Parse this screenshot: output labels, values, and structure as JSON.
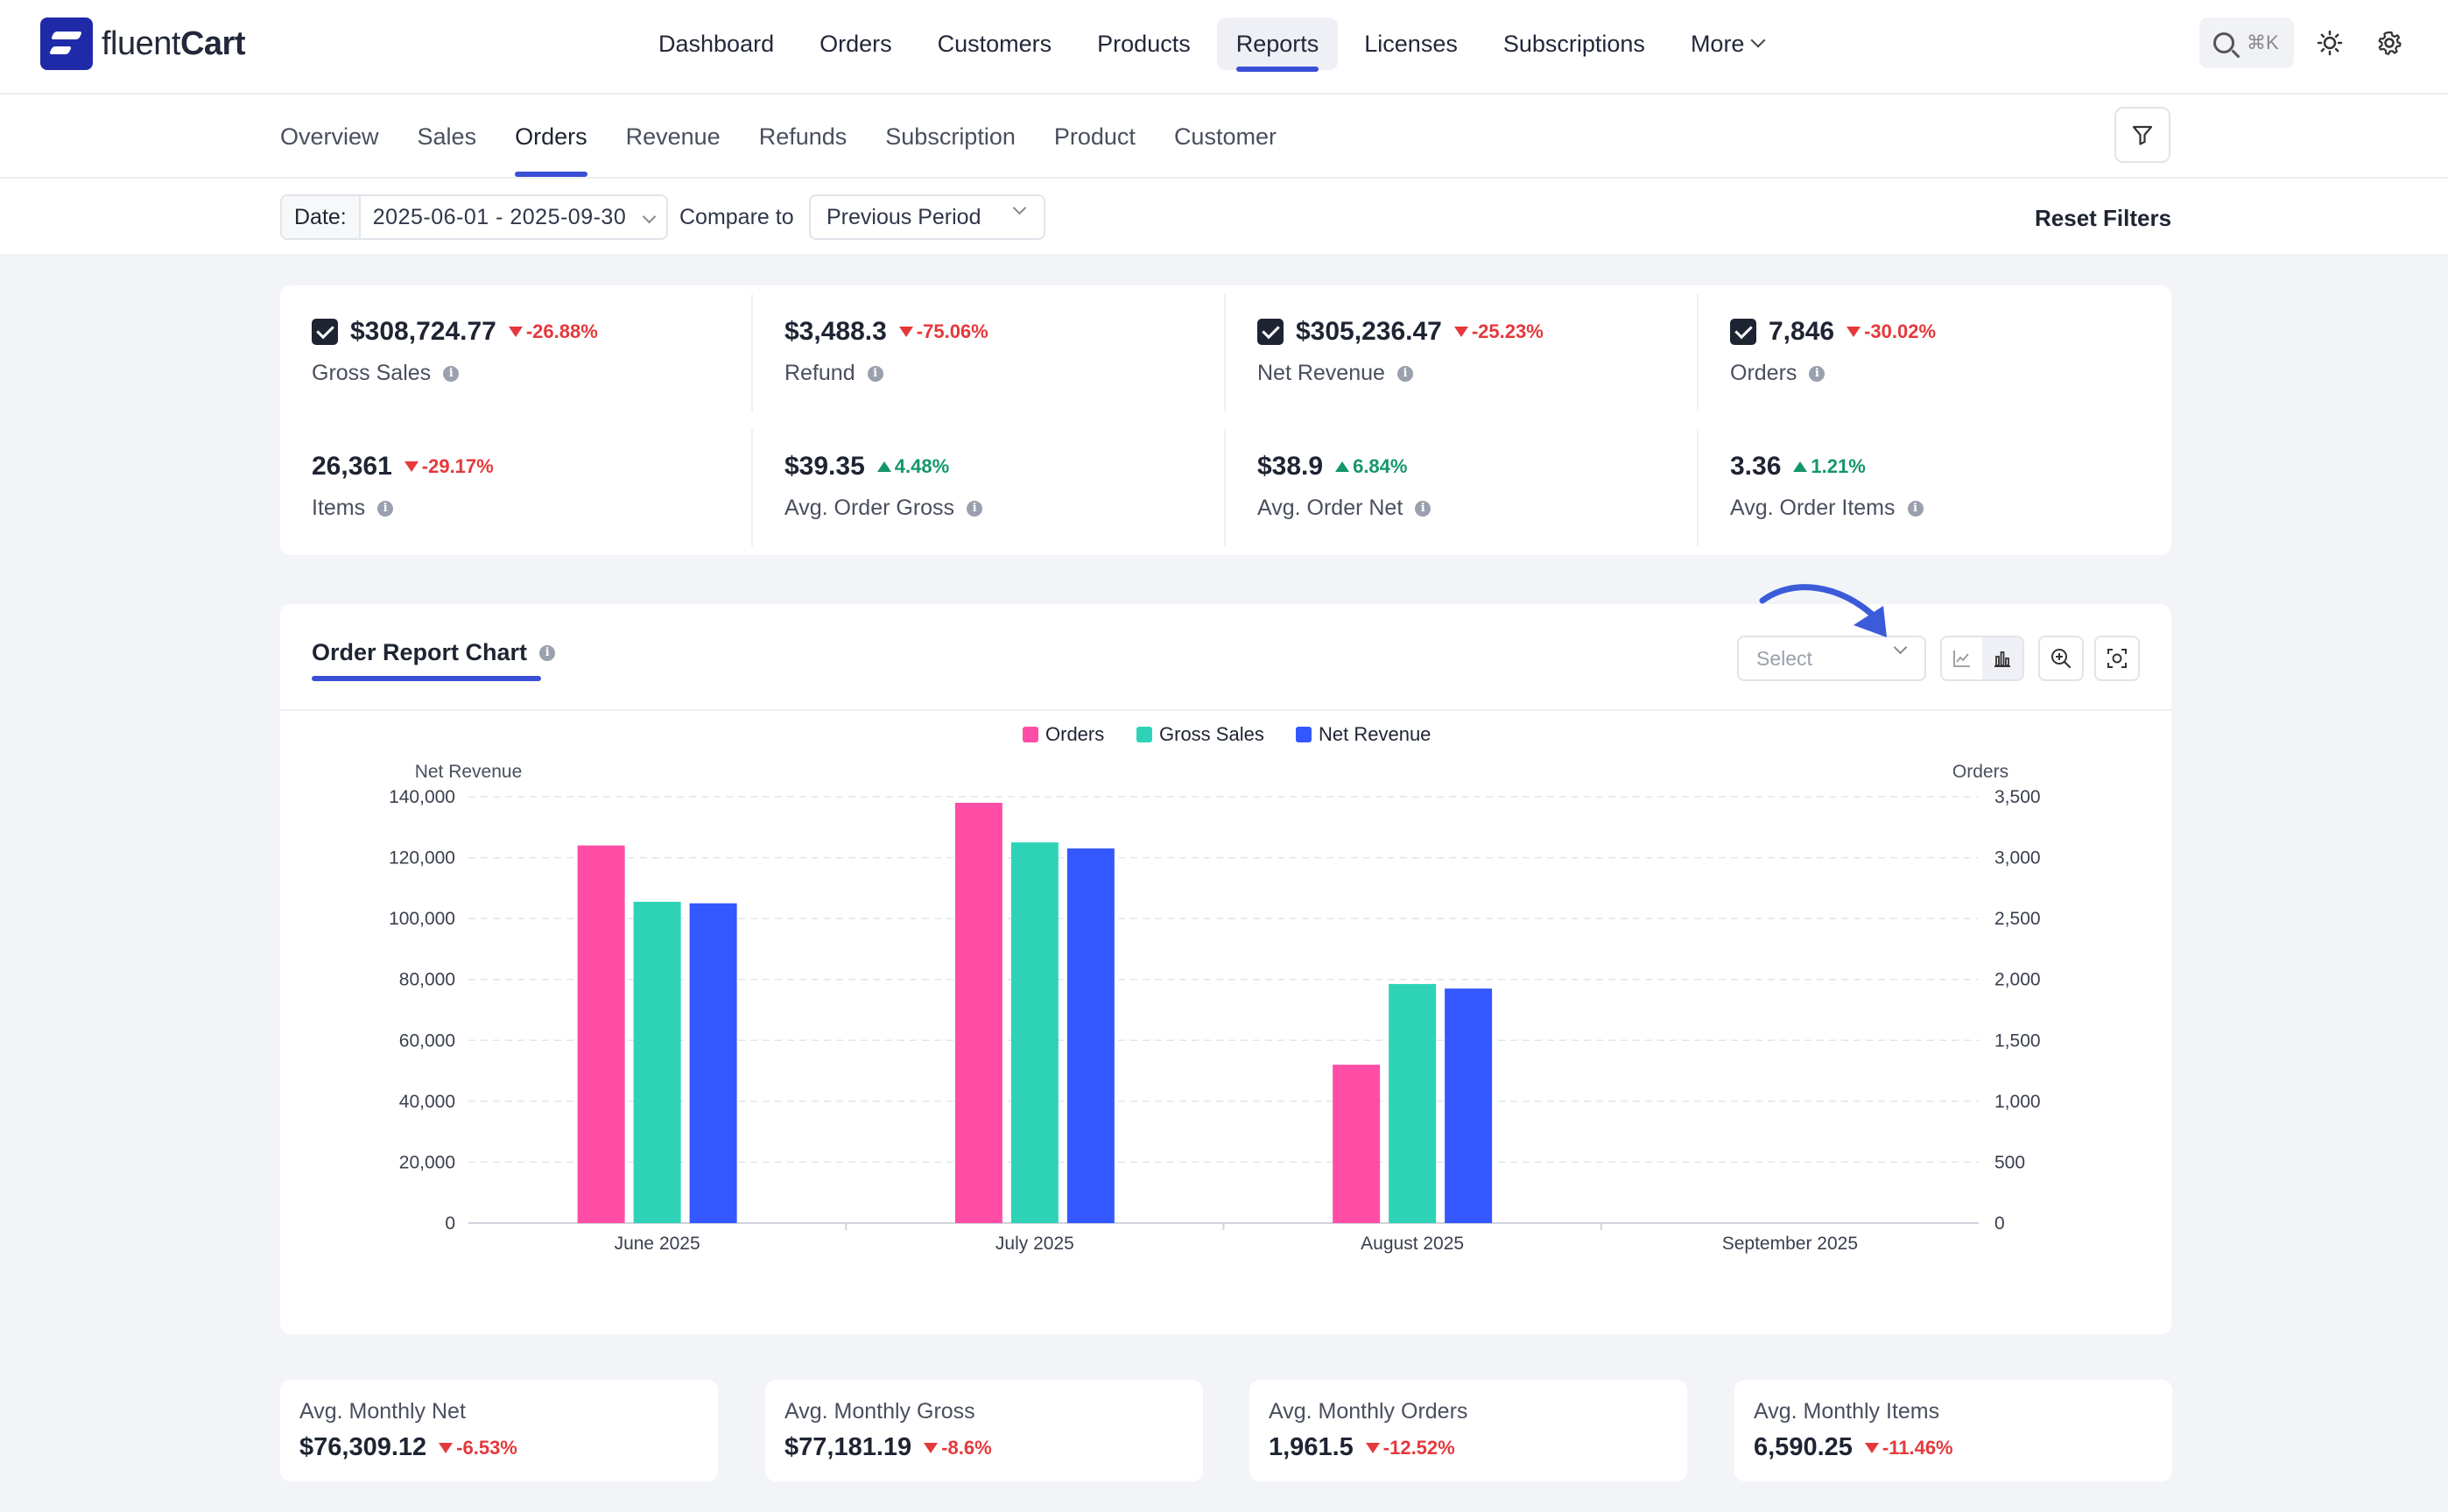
{
  "app": {
    "logo_prefix": "fluent",
    "logo_suffix": "Cart"
  },
  "mainnav": {
    "items": [
      {
        "label": "Dashboard"
      },
      {
        "label": "Orders"
      },
      {
        "label": "Customers"
      },
      {
        "label": "Products"
      },
      {
        "label": "Reports"
      },
      {
        "label": "Licenses"
      },
      {
        "label": "Subscriptions"
      },
      {
        "label": "More"
      }
    ],
    "active": "Reports",
    "shortcut": "⌘K"
  },
  "subnav": {
    "tabs": [
      {
        "label": "Overview"
      },
      {
        "label": "Sales"
      },
      {
        "label": "Orders"
      },
      {
        "label": "Revenue"
      },
      {
        "label": "Refunds"
      },
      {
        "label": "Subscription"
      },
      {
        "label": "Product"
      },
      {
        "label": "Customer"
      }
    ],
    "active": "Orders"
  },
  "filters": {
    "date_label": "Date:",
    "date_value": "2025-06-01 - 2025-09-30",
    "compare_label": "Compare to",
    "compare_value": "Previous Period",
    "reset_label": "Reset Filters"
  },
  "stats": [
    {
      "value": "$308,724.77",
      "change": "-26.88%",
      "direction": "down",
      "label": "Gross Sales",
      "checked": true
    },
    {
      "value": "$3,488.3",
      "change": "-75.06%",
      "direction": "down",
      "label": "Refund",
      "checked": false
    },
    {
      "value": "$305,236.47",
      "change": "-25.23%",
      "direction": "down",
      "label": "Net Revenue",
      "checked": true
    },
    {
      "value": "7,846",
      "change": "-30.02%",
      "direction": "down",
      "label": "Orders",
      "checked": true
    },
    {
      "value": "26,361",
      "change": "-29.17%",
      "direction": "down",
      "label": "Items",
      "checked": false
    },
    {
      "value": "$39.35",
      "change": "4.48%",
      "direction": "up",
      "label": "Avg. Order Gross",
      "checked": false
    },
    {
      "value": "$38.9",
      "change": "6.84%",
      "direction": "up",
      "label": "Avg. Order Net",
      "checked": false
    },
    {
      "value": "3.36",
      "change": "1.21%",
      "direction": "up",
      "label": "Avg. Order Items",
      "checked": false
    }
  ],
  "chart": {
    "title": "Order Report Chart",
    "select_placeholder": "Select"
  },
  "chart_data": {
    "type": "bar",
    "categories": [
      "June 2025",
      "July 2025",
      "August 2025",
      "September 2025"
    ],
    "series": [
      {
        "name": "Orders",
        "axis": "right",
        "color": "#ff4da6",
        "values": [
          3100,
          3450,
          1300,
          0
        ]
      },
      {
        "name": "Gross Sales",
        "axis": "left",
        "color": "#2ed3b7",
        "values": [
          105500,
          125000,
          78500,
          0
        ]
      },
      {
        "name": "Net Revenue",
        "axis": "left",
        "color": "#3358ff",
        "values": [
          105000,
          123000,
          77000,
          0
        ]
      }
    ],
    "ylabel_left": "Net Revenue",
    "ylabel_right": "Orders",
    "ylim_left": [
      0,
      140000
    ],
    "ylim_right": [
      0,
      3500
    ],
    "yticks_left": [
      "0",
      "20,000",
      "40,000",
      "60,000",
      "80,000",
      "100,000",
      "120,000",
      "140,000"
    ],
    "yticks_right": [
      "0",
      "500",
      "1,000",
      "1,500",
      "2,000",
      "2,500",
      "3,000",
      "3,500"
    ],
    "legend_position": "top-center",
    "grid": true
  },
  "averages": [
    {
      "label": "Avg. Monthly Net",
      "value": "$76,309.12",
      "change": "-6.53%"
    },
    {
      "label": "Avg. Monthly Gross",
      "value": "$77,181.19",
      "change": "-8.6%"
    },
    {
      "label": "Avg. Monthly Orders",
      "value": "1,961.5",
      "change": "-12.52%"
    },
    {
      "label": "Avg. Monthly Items",
      "value": "6,590.25",
      "change": "-11.46%"
    }
  ]
}
